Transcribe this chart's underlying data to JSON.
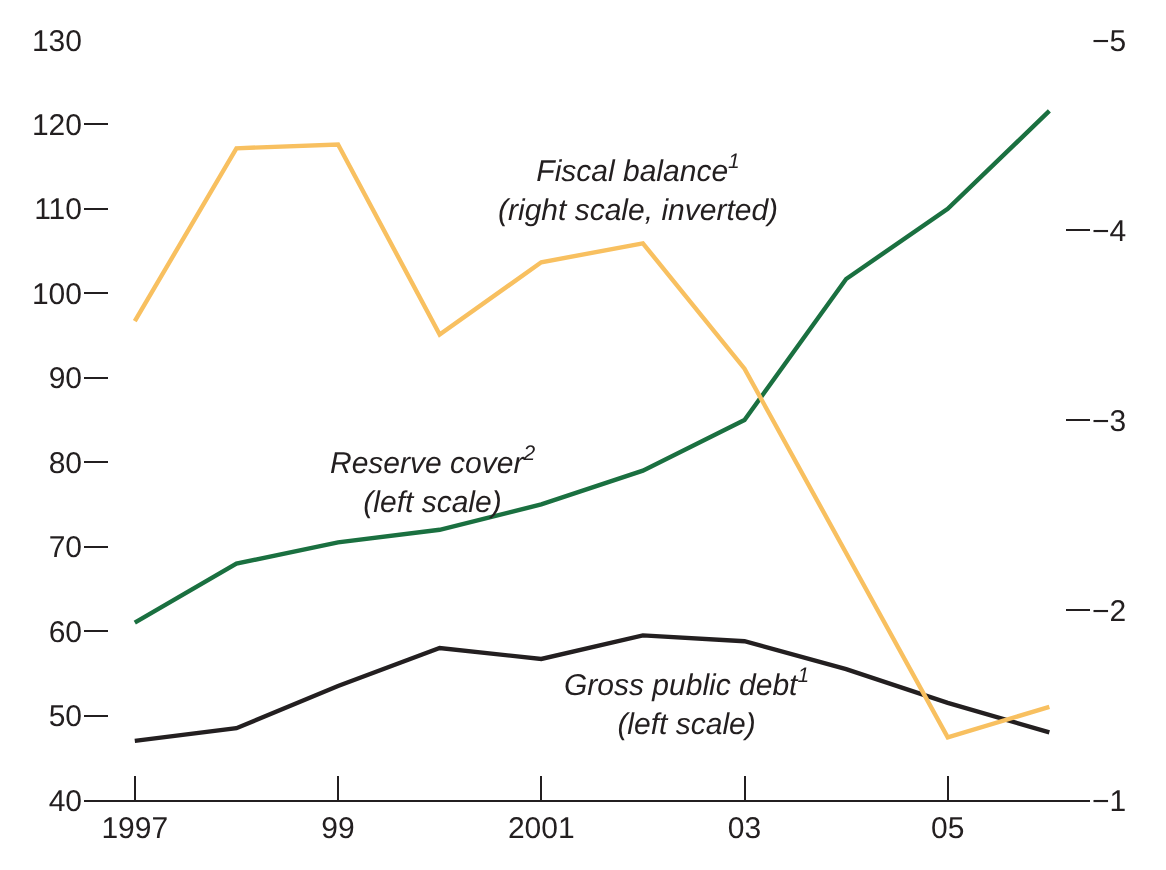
{
  "chart_data": {
    "type": "line",
    "x": [
      1997,
      1998,
      1999,
      2000,
      2001,
      2002,
      2003,
      2004,
      2005,
      2006
    ],
    "series": [
      {
        "color": "#1a7040",
        "values": [
          61,
          68,
          70.5,
          72,
          75,
          79,
          85,
          101.7,
          110,
          121.6
        ]
      },
      {
        "color": "#231f20",
        "values": [
          47,
          48.5,
          53.5,
          58,
          56.7,
          59.5,
          58.8,
          55.5,
          51.5,
          48
        ]
      },
      {
        "color": "#f8c060",
        "axis": "y2",
        "values": [
          -3.52,
          -4.43,
          -4.45,
          -3.45,
          -3.83,
          -3.93,
          -3.27,
          -2.3,
          -1.33,
          -1.49
        ]
      }
    ],
    "xlim": [
      1996.5,
      2006.4
    ],
    "xticks": [
      1997,
      {
        "value": 1999,
        "label": "99"
      },
      2001,
      {
        "value": 2003,
        "label": "03"
      },
      {
        "value": 2005,
        "label": "05"
      }
    ],
    "ylim": [
      40,
      130
    ],
    "yticks": [
      40,
      50,
      60,
      70,
      80,
      90,
      100,
      110,
      120,
      130
    ],
    "y2lim": [
      -1,
      -5
    ],
    "y2ticks": [
      {
        "value": -1,
        "label": "−1"
      },
      {
        "value": -2,
        "label": "−2"
      },
      {
        "value": -3,
        "label": "−3"
      },
      {
        "value": -4,
        "label": "−4"
      },
      {
        "value": -5,
        "label": "−5"
      }
    ],
    "annotations": [
      "Fiscal balance$^{1}$\n(right scale, inverted)",
      "Reserve cover$^{2}$\n(left scale)",
      "Gross public debt$^{1}$\n(left scale)"
    ],
    "marker": "none",
    "line_style": "solid"
  }
}
